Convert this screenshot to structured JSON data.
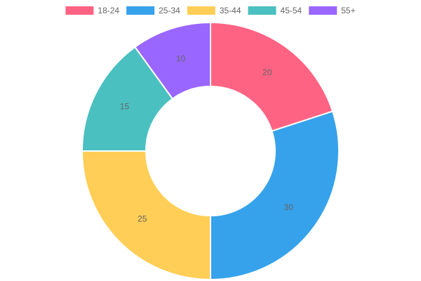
{
  "chart_data": {
    "type": "doughnut",
    "categories": [
      "18-24",
      "25-34",
      "35-44",
      "45-54",
      "55+"
    ],
    "values": [
      20,
      30,
      25,
      15,
      10
    ],
    "colors": [
      "#ff6384",
      "#36a2eb",
      "#ffce56",
      "#4bc0c0",
      "#9966ff"
    ],
    "legend": "top"
  }
}
